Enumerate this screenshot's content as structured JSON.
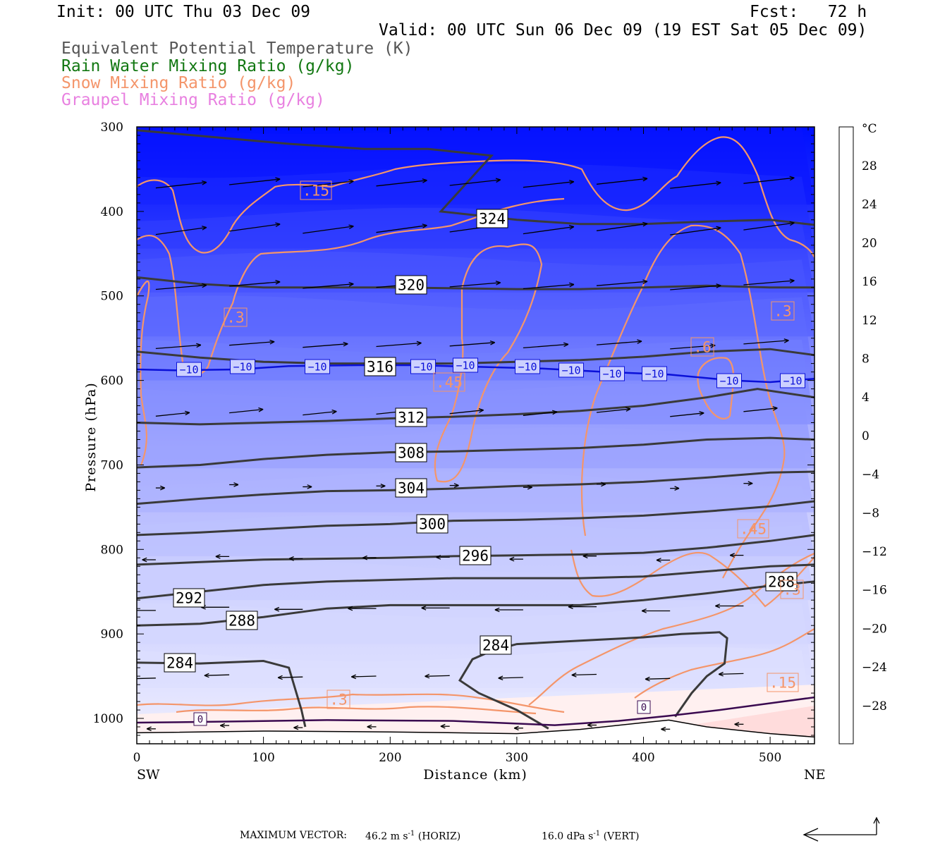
{
  "header": {
    "init": "Init: 00 UTC Thu 03 Dec 09",
    "fcst": "Fcst:   72 h",
    "valid": "Valid: 00 UTC Sun 06 Dec 09 (19 EST Sat 05 Dec 09)"
  },
  "legend": [
    {
      "text": "Equivalent Potential Temperature (K)",
      "color": "#555555"
    },
    {
      "text": "Rain Water Mixing Ratio (g/kg)",
      "color": "#117711"
    },
    {
      "text": "Snow Mixing Ratio (g/kg)",
      "color": "#f4956a"
    },
    {
      "text": "Graupel Mixing Ratio (g/kg)",
      "color": "#e880e0"
    }
  ],
  "colorbar": {
    "unit": "°C",
    "tick_labels": [
      "28",
      "24",
      "20",
      "16",
      "12",
      "8",
      "4",
      "0",
      "−4",
      "−8",
      "−12",
      "−16",
      "−20",
      "−24",
      "−28"
    ],
    "colors_top_to_bottom": [
      "#ff2a1a",
      "#ff4c40",
      "#ff6a60",
      "#ff8a80",
      "#ffa49c",
      "#ffbcb6",
      "#ffd2ce",
      "#ffe6e4",
      "#ffffff",
      "#f0f0ff",
      "#dcdcff",
      "#c8c8ff",
      "#b0b0ff",
      "#9696ff",
      "#7c7cff",
      "#6262ff",
      "#4848ff",
      "#3030ff",
      "#1818ff",
      "#0000ff"
    ]
  },
  "axes": {
    "ylabel": "Pressure (hPa)",
    "xlabel": "Distance (km)",
    "left_end": "SW",
    "right_end": "NE",
    "y_ticks": [
      "300",
      "400",
      "500",
      "600",
      "700",
      "800",
      "900",
      "1000"
    ],
    "x_ticks": [
      "0",
      "100",
      "200",
      "300",
      "400",
      "500"
    ]
  },
  "footer": {
    "max_label": "MAXIMUM VECTOR:",
    "horiz": "46.2 m s",
    "horiz_unit": "(HORIZ)",
    "vert": "16.0 dPa s",
    "vert_unit": "(VERT)",
    "exp": "-1"
  },
  "chart_data": {
    "type": "cross-section",
    "xlim": [
      0,
      535
    ],
    "ylim": [
      300,
      1030
    ],
    "y_scale": "linear",
    "theta_e_contours": [
      {
        "label": "324",
        "points": [
          [
            0,
            304
          ],
          [
            60,
            312
          ],
          [
            120,
            320
          ],
          [
            180,
            326
          ],
          [
            230,
            326
          ],
          [
            280,
            334
          ],
          [
            240,
            400
          ],
          [
            300,
            410
          ],
          [
            350,
            415
          ],
          [
            400,
            415
          ],
          [
            450,
            412
          ],
          [
            500,
            410
          ],
          [
            535,
            416
          ]
        ]
      },
      {
        "label": "320",
        "points": [
          [
            0,
            478
          ],
          [
            50,
            486
          ],
          [
            100,
            490
          ],
          [
            150,
            490
          ],
          [
            200,
            490
          ],
          [
            250,
            491
          ],
          [
            300,
            492
          ],
          [
            350,
            492
          ],
          [
            400,
            490
          ],
          [
            450,
            488
          ],
          [
            500,
            490
          ],
          [
            535,
            490
          ]
        ]
      },
      {
        "label": "316",
        "points": [
          [
            0,
            566
          ],
          [
            50,
            573
          ],
          [
            100,
            578
          ],
          [
            150,
            580
          ],
          [
            200,
            580
          ],
          [
            250,
            580
          ],
          [
            300,
            578
          ],
          [
            350,
            576
          ],
          [
            400,
            572
          ],
          [
            450,
            566
          ],
          [
            500,
            563
          ],
          [
            535,
            570
          ]
        ]
      },
      {
        "label": "312",
        "points": [
          [
            0,
            650
          ],
          [
            50,
            652
          ],
          [
            100,
            650
          ],
          [
            150,
            648
          ],
          [
            200,
            645
          ],
          [
            250,
            643
          ],
          [
            300,
            640
          ],
          [
            350,
            636
          ],
          [
            400,
            630
          ],
          [
            450,
            620
          ],
          [
            490,
            610
          ],
          [
            535,
            620
          ]
        ]
      },
      {
        "label": "308",
        "points": [
          [
            0,
            703
          ],
          [
            50,
            700
          ],
          [
            100,
            693
          ],
          [
            150,
            688
          ],
          [
            200,
            685
          ],
          [
            250,
            684
          ],
          [
            300,
            682
          ],
          [
            350,
            680
          ],
          [
            400,
            676
          ],
          [
            450,
            670
          ],
          [
            500,
            668
          ],
          [
            535,
            670
          ]
        ]
      },
      {
        "label": "304",
        "points": [
          [
            0,
            746
          ],
          [
            50,
            740
          ],
          [
            100,
            735
          ],
          [
            150,
            731
          ],
          [
            200,
            730
          ],
          [
            250,
            728
          ],
          [
            300,
            725
          ],
          [
            350,
            723
          ],
          [
            400,
            720
          ],
          [
            450,
            715
          ],
          [
            500,
            709
          ],
          [
            535,
            708
          ]
        ]
      },
      {
        "label": "300",
        "points": [
          [
            0,
            783
          ],
          [
            50,
            780
          ],
          [
            100,
            776
          ],
          [
            150,
            772
          ],
          [
            200,
            770
          ],
          [
            250,
            766
          ],
          [
            300,
            765
          ],
          [
            350,
            763
          ],
          [
            400,
            760
          ],
          [
            450,
            755
          ],
          [
            500,
            749
          ],
          [
            535,
            743
          ]
        ]
      },
      {
        "label": "296",
        "points": [
          [
            0,
            818
          ],
          [
            50,
            815
          ],
          [
            100,
            812
          ],
          [
            150,
            811
          ],
          [
            200,
            810
          ],
          [
            250,
            808
          ],
          [
            300,
            807
          ],
          [
            350,
            806
          ],
          [
            400,
            804
          ],
          [
            450,
            798
          ],
          [
            500,
            790
          ],
          [
            535,
            783
          ]
        ]
      },
      {
        "label": "292",
        "points": [
          [
            0,
            858
          ],
          [
            50,
            850
          ],
          [
            100,
            842
          ],
          [
            150,
            838
          ],
          [
            200,
            836
          ],
          [
            250,
            834
          ],
          [
            300,
            834
          ],
          [
            350,
            834
          ],
          [
            400,
            832
          ],
          [
            450,
            826
          ],
          [
            500,
            820
          ],
          [
            535,
            818
          ]
        ]
      },
      {
        "label": "288",
        "points": [
          [
            0,
            890
          ],
          [
            50,
            888
          ],
          [
            100,
            880
          ],
          [
            150,
            870
          ],
          [
            200,
            866
          ],
          [
            250,
            866
          ],
          [
            300,
            866
          ],
          [
            350,
            866
          ],
          [
            400,
            860
          ],
          [
            450,
            852
          ],
          [
            500,
            843
          ],
          [
            535,
            838
          ]
        ]
      },
      {
        "label": "284",
        "points": [
          [
            0,
            934
          ],
          [
            50,
            935
          ],
          [
            100,
            932
          ],
          [
            120,
            940
          ],
          [
            130,
            990
          ],
          [
            133,
            1010
          ]
        ]
      },
      {
        "label": "",
        "points": [
          [
            325,
            1012
          ],
          [
            300,
            990
          ],
          [
            270,
            970
          ],
          [
            255,
            955
          ],
          [
            265,
            930
          ],
          [
            280,
            920
          ],
          [
            300,
            912
          ],
          [
            350,
            908
          ],
          [
            400,
            904
          ],
          [
            430,
            900
          ],
          [
            460,
            898
          ],
          [
            466,
            905
          ],
          [
            464,
            935
          ],
          [
            450,
            950
          ],
          [
            438,
            970
          ],
          [
            425,
            998
          ]
        ]
      }
    ],
    "theta_e_labels": [
      "324",
      "320",
      "316",
      "312",
      "308",
      "304",
      "300",
      "296",
      "292",
      "288",
      "284",
      "284",
      "288"
    ],
    "temp_minus10_line": {
      "label": "−10",
      "points": [
        [
          0,
          587
        ],
        [
          30,
          588
        ],
        [
          80,
          587
        ],
        [
          120,
          583
        ],
        [
          175,
          582
        ],
        [
          220,
          582
        ],
        [
          270,
          584
        ],
        [
          320,
          586
        ],
        [
          370,
          590
        ],
        [
          420,
          593
        ],
        [
          470,
          600
        ],
        [
          500,
          602
        ],
        [
          535,
          598
        ]
      ]
    },
    "temp_minus10_labels": [
      "−10",
      "−10",
      "−10",
      "−10",
      "−10",
      "−10",
      "−10",
      "−10",
      "−10",
      "−10",
      "−10"
    ],
    "zero_line_labels": [
      "0",
      "0"
    ],
    "snow_labels": [
      ".15",
      ".3",
      ".3",
      ".45",
      ".45",
      ".6",
      ".3",
      ".15",
      ".3",
      ".45"
    ],
    "surface": [
      [
        0,
        1017
      ],
      [
        100,
        1015
      ],
      [
        200,
        1016
      ],
      [
        300,
        1018
      ],
      [
        350,
        1013
      ],
      [
        400,
        1005
      ],
      [
        420,
        1002
      ],
      [
        450,
        1010
      ],
      [
        500,
        1018
      ],
      [
        535,
        1022
      ]
    ]
  }
}
